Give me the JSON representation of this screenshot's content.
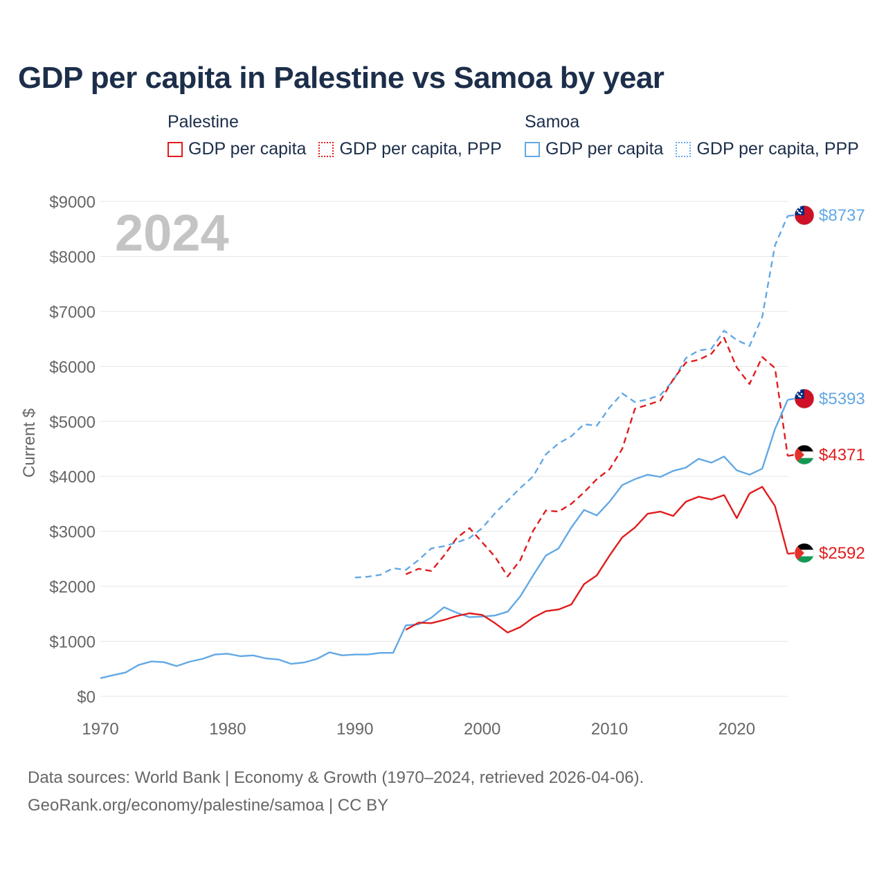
{
  "title": "GDP per capita in Palestine vs Samoa by year",
  "legend": {
    "groups": [
      {
        "name": "Palestine",
        "items": [
          {
            "label": "GDP per capita",
            "style": "solid",
            "color": "#e01b1b"
          },
          {
            "label": "GDP per capita, PPP",
            "style": "dotted",
            "color": "#e01b1b"
          }
        ]
      },
      {
        "name": "Samoa",
        "items": [
          {
            "label": "GDP per capita",
            "style": "solid",
            "color": "#62a8e5"
          },
          {
            "label": "GDP per capita, PPP",
            "style": "dotted",
            "color": "#62a8e5"
          }
        ]
      }
    ]
  },
  "year_label": "2024",
  "source": {
    "line1": "Data sources: World Bank | Economy & Growth (1970–2024, retrieved 2026-04-06).",
    "line2": "GeoRank.org/economy/palestine/samoa | CC BY"
  },
  "colors": {
    "palestine": "#e01b1b",
    "samoa": "#62a8e5",
    "grid": "#e6e6e6",
    "axis_text": "#666666",
    "year": "#c4c4c4"
  },
  "chart_data": {
    "type": "line",
    "title": "GDP per capita in Palestine vs Samoa by year",
    "xlabel": "",
    "ylabel": "Current $",
    "xlim": [
      1970,
      2024
    ],
    "ylim": [
      0,
      9000
    ],
    "x_ticks": [
      1970,
      1980,
      1990,
      2000,
      2010,
      2020
    ],
    "y_ticks": [
      {
        "value": 0,
        "label": "$0"
      },
      {
        "value": 1000,
        "label": "$1000"
      },
      {
        "value": 2000,
        "label": "$2000"
      },
      {
        "value": 3000,
        "label": "$3000"
      },
      {
        "value": 4000,
        "label": "$4000"
      },
      {
        "value": 5000,
        "label": "$5000"
      },
      {
        "value": 6000,
        "label": "$6000"
      },
      {
        "value": 7000,
        "label": "$7000"
      },
      {
        "value": 8000,
        "label": "$8000"
      },
      {
        "value": 9000,
        "label": "$9000"
      }
    ],
    "grid": true,
    "series": [
      {
        "name": "Samoa GDP per capita, PPP",
        "country": "samoa",
        "style": "dashed",
        "color": "#62a8e5",
        "end_label": "$8737",
        "x_start": 1990,
        "values": [
          2160,
          2175,
          2210,
          2330,
          2300,
          2480,
          2690,
          2730,
          2800,
          2880,
          3060,
          3330,
          3560,
          3790,
          4000,
          4400,
          4600,
          4730,
          4950,
          4920,
          5250,
          5510,
          5350,
          5400,
          5480,
          5740,
          6150,
          6290,
          6320,
          6650,
          6480,
          6370,
          6900,
          8200,
          8737
        ]
      },
      {
        "name": "Palestine GDP per capita, PPP",
        "country": "palestine",
        "style": "dashed",
        "color": "#e01b1b",
        "end_label": "$4371",
        "x_start": 1994,
        "values": [
          2220,
          2320,
          2280,
          2560,
          2880,
          3060,
          2800,
          2540,
          2180,
          2480,
          3010,
          3380,
          3360,
          3500,
          3710,
          3950,
          4130,
          4500,
          5230,
          5300,
          5380,
          5760,
          6070,
          6120,
          6230,
          6520,
          5980,
          5680,
          6170,
          5970,
          4371
        ]
      },
      {
        "name": "Samoa GDP per capita",
        "country": "samoa",
        "style": "solid",
        "color": "#62a8e5",
        "end_label": "$5393",
        "x_start": 1970,
        "values": [
          330,
          385,
          435,
          570,
          635,
          620,
          550,
          630,
          680,
          760,
          775,
          730,
          745,
          690,
          670,
          590,
          615,
          680,
          800,
          745,
          760,
          760,
          790,
          790,
          1290,
          1310,
          1430,
          1620,
          1520,
          1440,
          1450,
          1470,
          1540,
          1820,
          2200,
          2560,
          2690,
          3070,
          3390,
          3290,
          3540,
          3840,
          3950,
          4030,
          3990,
          4100,
          4160,
          4320,
          4250,
          4360,
          4110,
          4030,
          4140,
          4860,
          5393
        ]
      },
      {
        "name": "Palestine GDP per capita",
        "country": "palestine",
        "style": "solid",
        "color": "#e01b1b",
        "end_label": "$2592",
        "x_start": 1994,
        "values": [
          1210,
          1340,
          1330,
          1390,
          1460,
          1510,
          1480,
          1330,
          1160,
          1260,
          1430,
          1550,
          1580,
          1670,
          2040,
          2200,
          2560,
          2890,
          3070,
          3320,
          3360,
          3280,
          3540,
          3630,
          3580,
          3660,
          3240,
          3690,
          3810,
          3460,
          2592
        ]
      }
    ]
  }
}
